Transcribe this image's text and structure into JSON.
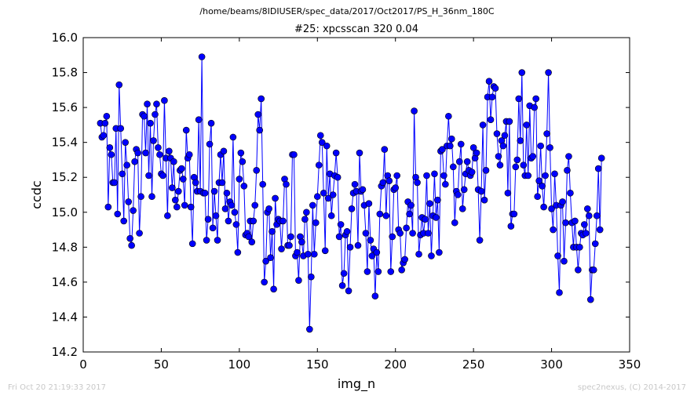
{
  "header": {
    "suptitle": "/home/beams/8IDIUSER/spec_data/2017/Oct2017/PS_H_36nm_180C",
    "title": "#25: xpcsscan 320 0.04"
  },
  "footer": {
    "timestamp": "Fri Oct 20 21:19:33 2017",
    "credit": "spec2nexus, (C) 2014-2017"
  },
  "colors": {
    "series": "#0000ff"
  },
  "chart_data": {
    "type": "line",
    "markers": "circle",
    "grid": false,
    "xlabel": "img_n",
    "ylabel": "ccdc",
    "xlim": [
      0,
      350
    ],
    "ylim": [
      14.2,
      16.0
    ],
    "xticks": [
      0,
      50,
      100,
      150,
      200,
      250,
      300,
      350
    ],
    "yticks": [
      14.2,
      14.4,
      14.6,
      14.8,
      15.0,
      15.2,
      15.4,
      15.6,
      15.8,
      16.0
    ],
    "xtick_labels": [
      "0",
      "50",
      "100",
      "150",
      "200",
      "250",
      "300",
      "350"
    ],
    "ytick_labels": [
      "14.2",
      "14.4",
      "14.6",
      "14.8",
      "15.0",
      "15.2",
      "15.4",
      "15.6",
      "15.8",
      "16.0"
    ],
    "x_start": 11,
    "y": [
      15.51,
      15.43,
      15.44,
      15.51,
      15.55,
      15.03,
      15.37,
      15.33,
      15.17,
      15.17,
      15.48,
      14.99,
      15.73,
      15.48,
      15.22,
      14.95,
      15.4,
      15.27,
      15.06,
      14.85,
      14.81,
      15.01,
      15.29,
      15.36,
      15.34,
      14.88,
      15.09,
      15.56,
      15.55,
      15.34,
      15.62,
      15.21,
      15.51,
      15.09,
      15.41,
      15.56,
      15.62,
      15.37,
      15.33,
      15.22,
      15.21,
      15.64,
      15.31,
      14.98,
      15.35,
      15.31,
      15.14,
      15.29,
      15.07,
      15.03,
      15.12,
      15.24,
      15.25,
      15.19,
      15.04,
      15.47,
      15.31,
      15.33,
      15.03,
      14.82,
      15.2,
      15.17,
      15.12,
      15.53,
      15.12,
      15.89,
      15.11,
      15.11,
      14.84,
      14.96,
      15.39,
      15.51,
      14.91,
      15.12,
      14.98,
      14.84,
      15.17,
      15.33,
      15.17,
      15.35,
      15.02,
      15.11,
      14.95,
      15.06,
      15.04,
      15.43,
      15.0,
      14.93,
      14.77,
      15.19,
      15.34,
      15.29,
      15.15,
      14.87,
      14.88,
      14.86,
      14.95,
      14.83,
      14.95,
      15.04,
      15.24,
      15.56,
      15.47,
      15.65,
      15.16,
      14.6,
      14.72,
      15.0,
      15.02,
      14.74,
      14.89,
      14.56,
      15.08,
      14.93,
      14.96,
      14.95,
      14.79,
      14.95,
      15.19,
      15.16,
      14.81,
      14.81,
      14.86,
      15.33,
      15.33,
      14.75,
      14.77,
      14.61,
      14.86,
      14.83,
      14.75,
      14.96,
      15.0,
      14.76,
      14.33,
      14.63,
      15.04,
      14.76,
      14.94,
      15.09,
      15.27,
      15.44,
      15.4,
      15.11,
      14.78,
      15.38,
      15.08,
      15.22,
      14.98,
      15.1,
      15.21,
      15.34,
      15.2,
      14.86,
      14.93,
      14.58,
      14.65,
      14.87,
      14.89,
      14.55,
      14.8,
      15.02,
      15.11,
      15.16,
      15.12,
      14.81,
      15.34,
      15.12,
      15.13,
      15.04,
      14.88,
      14.66,
      15.05,
      14.84,
      14.75,
      14.79,
      14.52,
      14.77,
      14.66,
      14.99,
      15.15,
      15.17,
      15.36,
      14.98,
      15.21,
      15.18,
      14.66,
      14.86,
      15.13,
      15.14,
      15.21,
      14.9,
      14.88,
      14.67,
      14.71,
      14.73,
      14.91,
      15.06,
      14.99,
      15.04,
      14.88,
      15.58,
      15.2,
      15.17,
      14.76,
      14.87,
      14.97,
      14.88,
      14.96,
      15.21,
      14.88,
      15.05,
      14.75,
      14.98,
      15.22,
      14.97,
      15.07,
      14.77,
      15.35,
      15.36,
      15.21,
      15.16,
      15.38,
      15.55,
      15.38,
      15.42,
      15.26,
      14.94,
      15.12,
      15.1,
      15.29,
      15.39,
      15.02,
      15.13,
      15.22,
      15.29,
      15.24,
      15.21,
      15.23,
      15.37,
      15.31,
      15.34,
      15.13,
      14.84,
      15.12,
      15.5,
      15.07,
      15.24,
      15.66,
      15.75,
      15.53,
      15.66,
      15.72,
      15.71,
      15.45,
      15.32,
      15.27,
      15.41,
      15.38,
      15.44,
      15.52,
      15.11,
      15.52,
      14.92,
      14.99,
      14.99,
      15.26,
      15.3,
      15.65,
      15.41,
      15.8,
      15.27,
      15.21,
      15.5,
      15.21,
      15.61,
      15.31,
      15.32,
      15.6,
      15.65,
      15.09,
      15.18,
      15.38,
      15.15,
      15.03,
      15.21,
      15.45,
      15.8,
      15.37,
      15.02,
      14.9,
      15.22,
      15.04,
      14.75,
      14.54,
      15.04,
      15.06,
      14.72,
      14.94,
      15.24,
      15.32,
      15.11,
      14.94,
      14.8,
      14.95,
      14.8,
      14.67,
      14.8,
      14.88,
      14.87,
      14.93,
      14.88,
      15.02,
      14.98,
      14.5,
      14.67,
      14.67,
      14.82,
      14.98,
      15.25,
      14.9,
      15.31
    ]
  }
}
